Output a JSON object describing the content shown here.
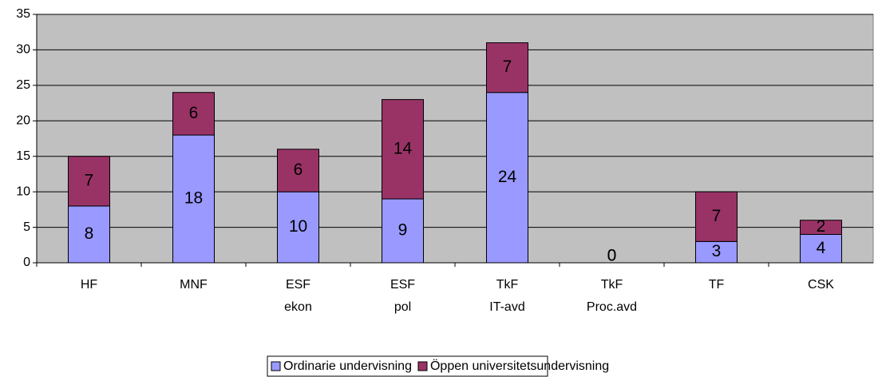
{
  "chart_data": {
    "type": "stacked_bar",
    "categories": [
      [
        "HF"
      ],
      [
        "MNF"
      ],
      [
        "ESF",
        "ekon"
      ],
      [
        "ESF",
        "pol"
      ],
      [
        "TkF",
        "IT-avd"
      ],
      [
        "TkF",
        "Proc.avd"
      ],
      [
        "TF"
      ],
      [
        "CSK"
      ]
    ],
    "series": [
      {
        "name": "Ordinarie undervisning",
        "color": "#9999ff",
        "values": [
          8,
          18,
          10,
          9,
          24,
          0,
          3,
          4
        ]
      },
      {
        "name": "Öppen universitetsundervisning",
        "color": "#993366",
        "values": [
          7,
          6,
          6,
          14,
          7,
          0,
          7,
          2
        ]
      }
    ],
    "ylim": [
      0,
      35
    ],
    "yticks": [
      0,
      5,
      10,
      15,
      20,
      25,
      30,
      35
    ],
    "grid": true,
    "legend": "bottom"
  }
}
